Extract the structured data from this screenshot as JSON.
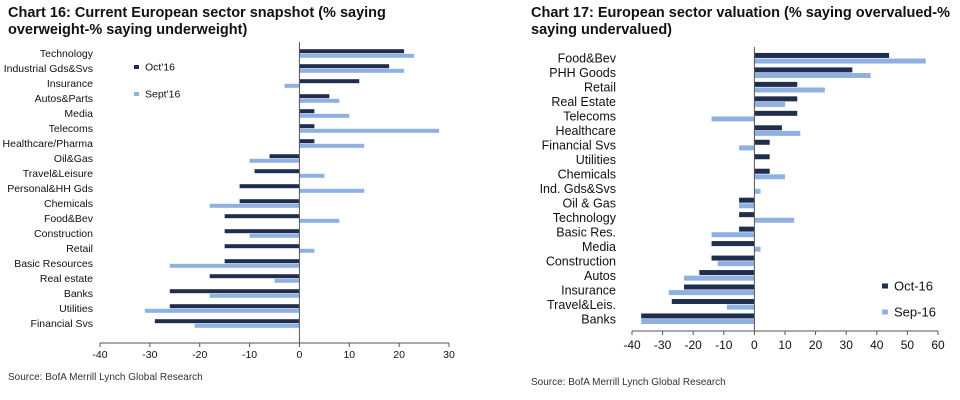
{
  "colors": {
    "oct": "#1f2d4f",
    "sep": "#8fb1e2",
    "axis": "#555555"
  },
  "chart_data": [
    {
      "type": "bar",
      "orientation": "horizontal",
      "title": "Chart 16: Current European sector snapshot (% saying overweight-% saying underweight)",
      "source": "Source: BofA Merrill Lynch Global Research",
      "categories": [
        "Technology",
        "Industrial Gds&Svs",
        "Insurance",
        "Autos&Parts",
        "Media",
        "Telecoms",
        "Healthcare/Pharma",
        "Oil&Gas",
        "Travel&Leisure",
        "Personal&HH Gds",
        "Chemicals",
        "Food&Bev",
        "Construction",
        "Retail",
        "Basic Resources",
        "Real estate",
        "Banks",
        "Utilities",
        "Financial Svs"
      ],
      "series": [
        {
          "name": "Oct'16",
          "values": [
            21,
            18,
            12,
            6,
            3,
            3,
            3,
            -6,
            -9,
            -12,
            -12,
            -15,
            -15,
            -15,
            -15,
            -18,
            -26,
            -26,
            -29
          ]
        },
        {
          "name": "Sept'16",
          "values": [
            23,
            21,
            -3,
            8,
            10,
            28,
            13,
            -10,
            5,
            13,
            -18,
            8,
            -10,
            3,
            -26,
            -5,
            -18,
            -31,
            -21
          ]
        }
      ],
      "xlim": [
        -40,
        30
      ],
      "xticks": [
        -40,
        -30,
        -20,
        -10,
        0,
        10,
        20,
        30
      ],
      "legend": "top-left"
    },
    {
      "type": "bar",
      "orientation": "horizontal",
      "title": "Chart 17: European sector valuation (% saying overvalued-% saying undervalued)",
      "source": "Source: BofA Merrill Lynch Global Research",
      "categories": [
        "Food&Bev",
        "PHH Goods",
        "Retail",
        "Real Estate",
        "Telecoms",
        "Healthcare",
        "Financial Svs",
        "Utilities",
        "Chemicals",
        "Ind. Gds&Svs",
        "Oil & Gas",
        "Technology",
        "Basic Res.",
        "Media",
        "Construction",
        "Autos",
        "Insurance",
        "Travel&Leis.",
        "Banks"
      ],
      "series": [
        {
          "name": "Oct-16",
          "values": [
            44,
            32,
            14,
            14,
            14,
            9,
            5,
            5,
            5,
            0,
            -5,
            -5,
            -5,
            -14,
            -14,
            -18,
            -23,
            -27,
            -37
          ]
        },
        {
          "name": "Sep-16",
          "values": [
            56,
            38,
            23,
            10,
            -14,
            15,
            -5,
            0,
            10,
            2,
            -5,
            13,
            -14,
            2,
            -12,
            -23,
            -28,
            -9,
            -37
          ]
        }
      ],
      "xlim": [
        -40,
        60
      ],
      "xticks": [
        -40,
        -30,
        -20,
        -10,
        0,
        10,
        20,
        30,
        40,
        50,
        60
      ],
      "legend": "bottom-right"
    }
  ]
}
